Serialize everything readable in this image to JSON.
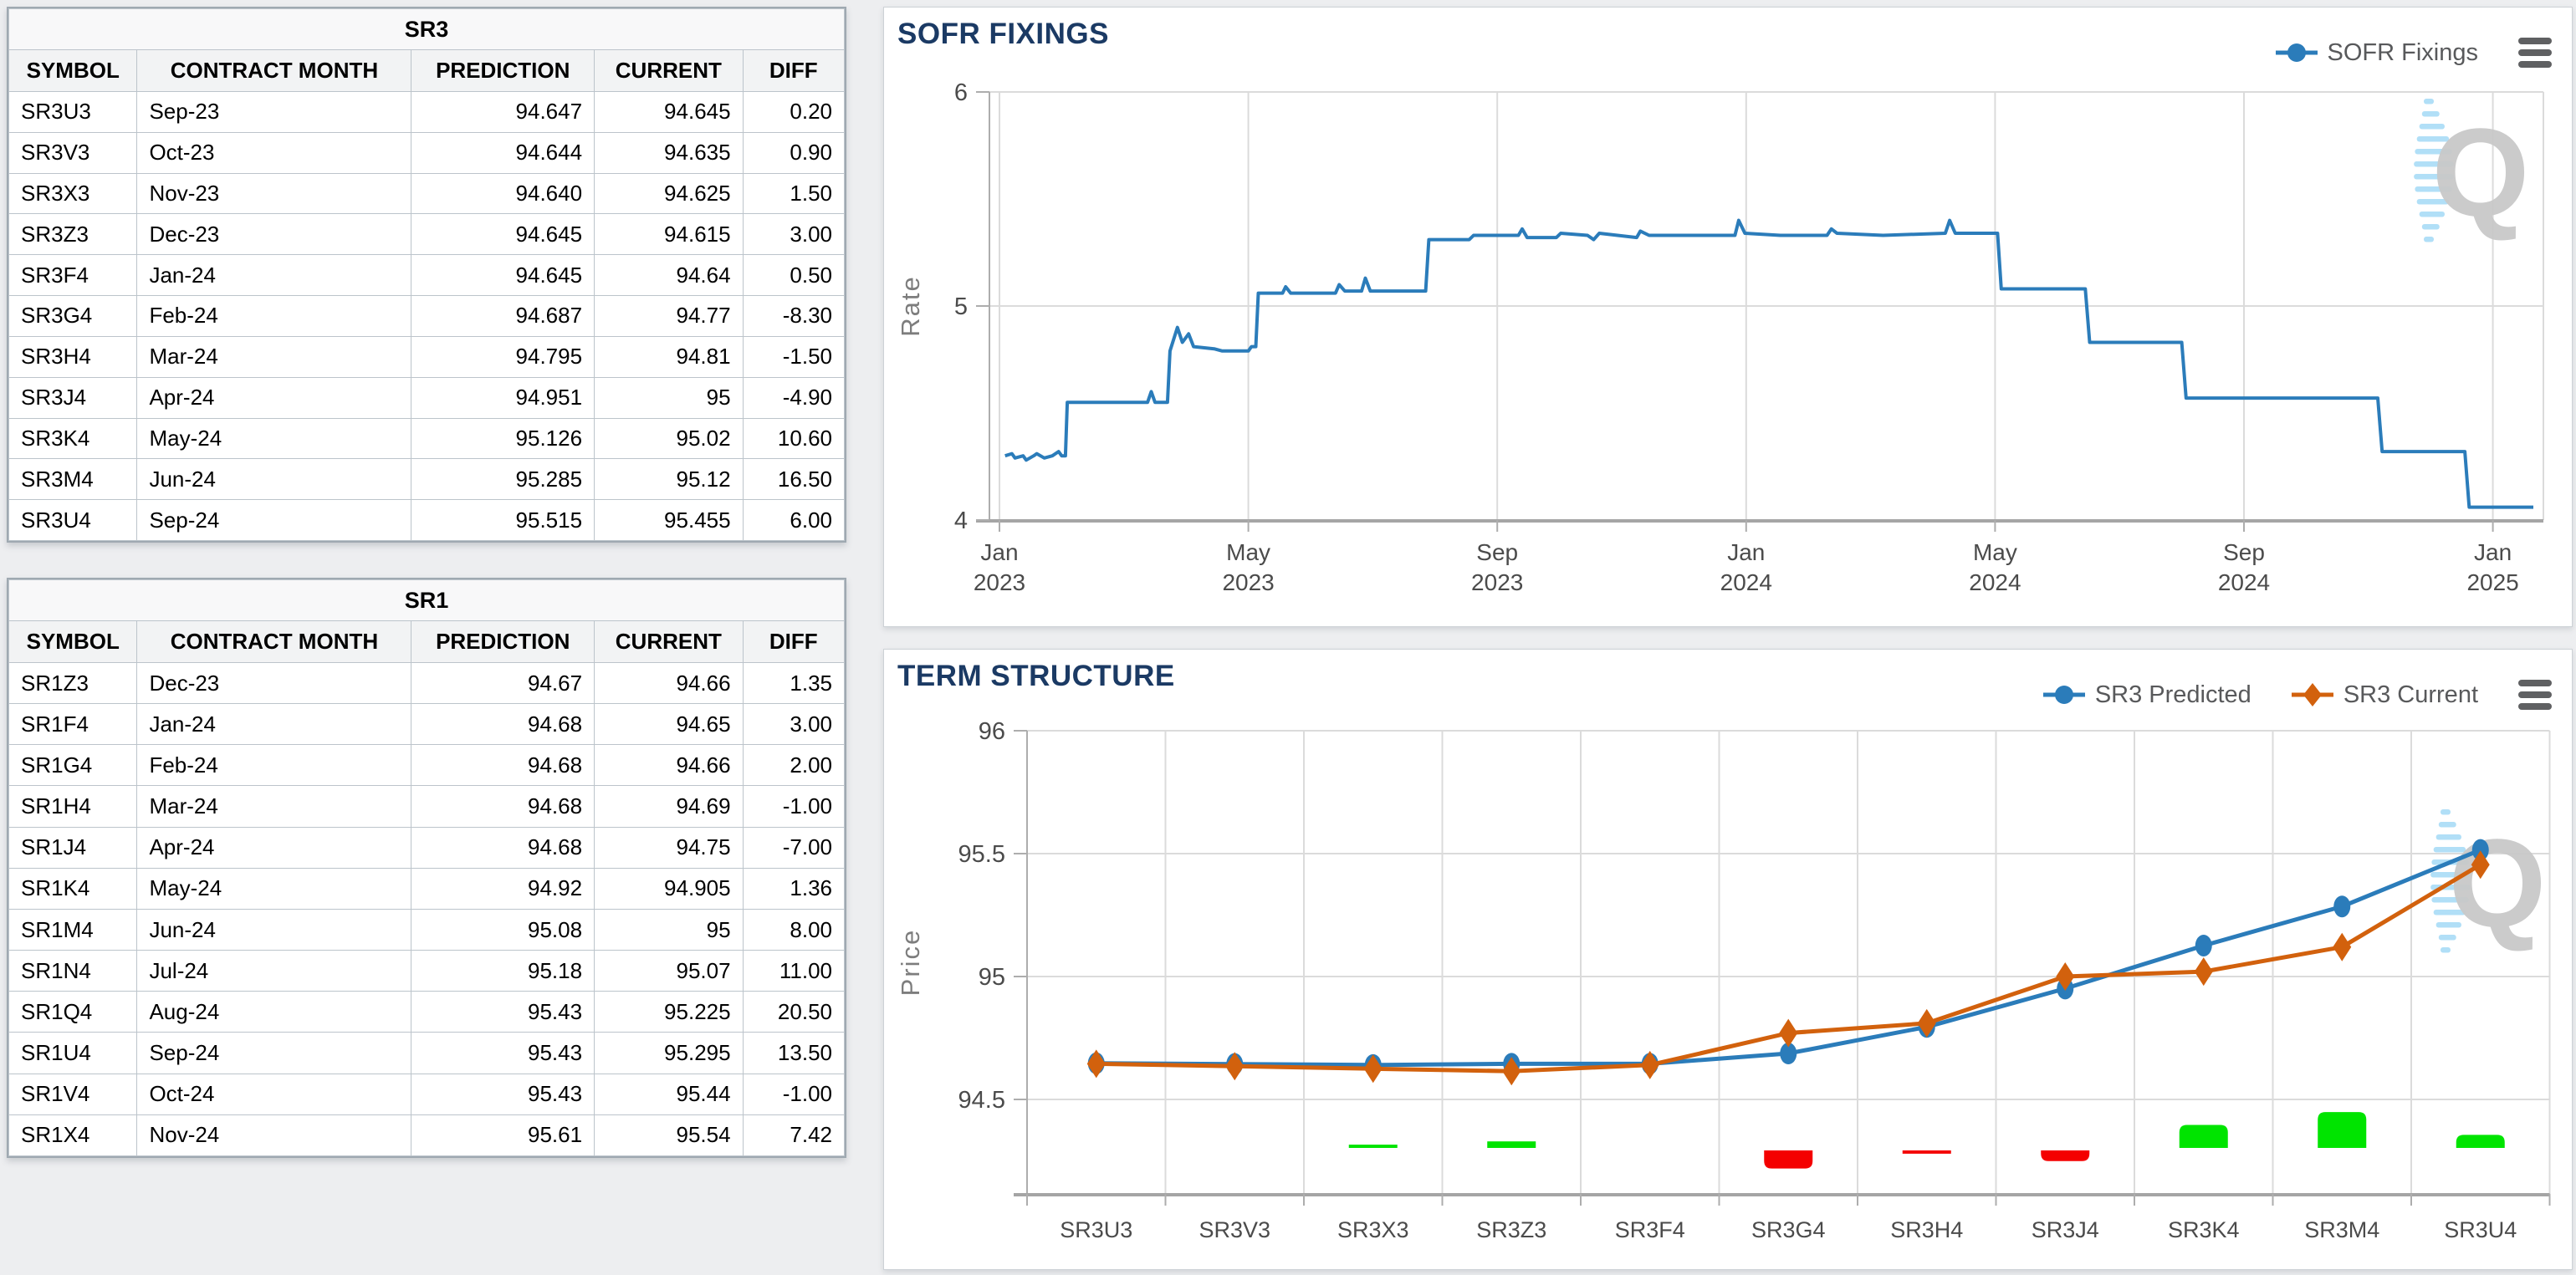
{
  "tables": [
    {
      "title": "SR3",
      "columns": [
        "SYMBOL",
        "CONTRACT MONTH",
        "PREDICTION",
        "CURRENT",
        "DIFF"
      ],
      "rows": [
        [
          "SR3U3",
          "Sep-23",
          "94.647",
          "94.645",
          "0.20"
        ],
        [
          "SR3V3",
          "Oct-23",
          "94.644",
          "94.635",
          "0.90"
        ],
        [
          "SR3X3",
          "Nov-23",
          "94.640",
          "94.625",
          "1.50"
        ],
        [
          "SR3Z3",
          "Dec-23",
          "94.645",
          "94.615",
          "3.00"
        ],
        [
          "SR3F4",
          "Jan-24",
          "94.645",
          "94.64",
          "0.50"
        ],
        [
          "SR3G4",
          "Feb-24",
          "94.687",
          "94.77",
          "-8.30"
        ],
        [
          "SR3H4",
          "Mar-24",
          "94.795",
          "94.81",
          "-1.50"
        ],
        [
          "SR3J4",
          "Apr-24",
          "94.951",
          "95",
          "-4.90"
        ],
        [
          "SR3K4",
          "May-24",
          "95.126",
          "95.02",
          "10.60"
        ],
        [
          "SR3M4",
          "Jun-24",
          "95.285",
          "95.12",
          "16.50"
        ],
        [
          "SR3U4",
          "Sep-24",
          "95.515",
          "95.455",
          "6.00"
        ]
      ]
    },
    {
      "title": "SR1",
      "columns": [
        "SYMBOL",
        "CONTRACT MONTH",
        "PREDICTION",
        "CURRENT",
        "DIFF"
      ],
      "rows": [
        [
          "SR1Z3",
          "Dec-23",
          "94.67",
          "94.66",
          "1.35"
        ],
        [
          "SR1F4",
          "Jan-24",
          "94.68",
          "94.65",
          "3.00"
        ],
        [
          "SR1G4",
          "Feb-24",
          "94.68",
          "94.66",
          "2.00"
        ],
        [
          "SR1H4",
          "Mar-24",
          "94.68",
          "94.69",
          "-1.00"
        ],
        [
          "SR1J4",
          "Apr-24",
          "94.68",
          "94.75",
          "-7.00"
        ],
        [
          "SR1K4",
          "May-24",
          "94.92",
          "94.905",
          "1.36"
        ],
        [
          "SR1M4",
          "Jun-24",
          "95.08",
          "95",
          "8.00"
        ],
        [
          "SR1N4",
          "Jul-24",
          "95.18",
          "95.07",
          "11.00"
        ],
        [
          "SR1Q4",
          "Aug-24",
          "95.43",
          "95.225",
          "20.50"
        ],
        [
          "SR1U4",
          "Sep-24",
          "95.43",
          "95.295",
          "13.50"
        ],
        [
          "SR1V4",
          "Oct-24",
          "95.43",
          "95.44",
          "-1.00"
        ],
        [
          "SR1X4",
          "Nov-24",
          "95.61",
          "95.54",
          "7.42"
        ]
      ]
    }
  ],
  "chart_data": [
    {
      "type": "line",
      "title": "SOFR FIXINGS",
      "ylabel": "Rate",
      "ylim": [
        4,
        6
      ],
      "y_ticks": [
        "6",
        "5",
        "4"
      ],
      "y_tick_values": [
        6,
        5,
        4
      ],
      "grid": true,
      "legend_position": "top-right",
      "x_tick_months": [
        0,
        4,
        8,
        12,
        16,
        20,
        24
      ],
      "x_tick_labels": [
        [
          "Jan",
          "2023"
        ],
        [
          "May",
          "2023"
        ],
        [
          "Sep",
          "2023"
        ],
        [
          "Jan",
          "2024"
        ],
        [
          "May",
          "2024"
        ],
        [
          "Sep",
          "2024"
        ],
        [
          "Jan",
          "2025"
        ]
      ],
      "series": [
        {
          "name": "SOFR Fixings",
          "color": "#2b7cba",
          "marker": "circle",
          "points_month_rate": [
            [
              0.09,
              4.3
            ],
            [
              0.2,
              4.31
            ],
            [
              0.25,
              4.29
            ],
            [
              0.38,
              4.3
            ],
            [
              0.43,
              4.28
            ],
            [
              0.55,
              4.3
            ],
            [
              0.6,
              4.31
            ],
            [
              0.72,
              4.29
            ],
            [
              0.85,
              4.3
            ],
            [
              0.95,
              4.32
            ],
            [
              1.0,
              4.3
            ],
            [
              1.06,
              4.3
            ],
            [
              1.09,
              4.55
            ],
            [
              2.38,
              4.55
            ],
            [
              2.44,
              4.6
            ],
            [
              2.5,
              4.55
            ],
            [
              2.7,
              4.55
            ],
            [
              2.74,
              4.79
            ],
            [
              2.86,
              4.9
            ],
            [
              2.94,
              4.83
            ],
            [
              3.04,
              4.87
            ],
            [
              3.12,
              4.81
            ],
            [
              3.45,
              4.8
            ],
            [
              3.58,
              4.79
            ],
            [
              4.0,
              4.79
            ],
            [
              4.05,
              4.81
            ],
            [
              4.12,
              4.81
            ],
            [
              4.16,
              5.06
            ],
            [
              4.55,
              5.06
            ],
            [
              4.6,
              5.09
            ],
            [
              4.68,
              5.06
            ],
            [
              5.4,
              5.06
            ],
            [
              5.46,
              5.1
            ],
            [
              5.55,
              5.07
            ],
            [
              5.82,
              5.07
            ],
            [
              5.88,
              5.13
            ],
            [
              5.96,
              5.07
            ],
            [
              6.85,
              5.07
            ],
            [
              6.9,
              5.31
            ],
            [
              7.55,
              5.31
            ],
            [
              7.62,
              5.33
            ],
            [
              8.34,
              5.33
            ],
            [
              8.4,
              5.36
            ],
            [
              8.48,
              5.32
            ],
            [
              8.95,
              5.32
            ],
            [
              9.02,
              5.34
            ],
            [
              9.45,
              5.33
            ],
            [
              9.55,
              5.31
            ],
            [
              9.64,
              5.34
            ],
            [
              10.24,
              5.32
            ],
            [
              10.3,
              5.35
            ],
            [
              10.44,
              5.33
            ],
            [
              11.0,
              5.33
            ],
            [
              11.82,
              5.33
            ],
            [
              11.88,
              5.4
            ],
            [
              11.98,
              5.34
            ],
            [
              12.55,
              5.33
            ],
            [
              13.3,
              5.33
            ],
            [
              13.37,
              5.36
            ],
            [
              13.46,
              5.34
            ],
            [
              14.2,
              5.33
            ],
            [
              15.2,
              5.34
            ],
            [
              15.27,
              5.4
            ],
            [
              15.36,
              5.34
            ],
            [
              16.04,
              5.34
            ],
            [
              16.1,
              5.08
            ],
            [
              17.45,
              5.08
            ],
            [
              17.52,
              4.83
            ],
            [
              19.0,
              4.83
            ],
            [
              19.07,
              4.57
            ],
            [
              22.15,
              4.57
            ],
            [
              22.22,
              4.32
            ],
            [
              23.55,
              4.32
            ],
            [
              23.62,
              4.06
            ],
            [
              24.65,
              4.06
            ]
          ]
        }
      ]
    },
    {
      "type": "line+bar",
      "title": "TERM STRUCTURE",
      "ylabel": "Price",
      "ylim": [
        94.12,
        96
      ],
      "y_ticks": [
        "96",
        "95.5",
        "95",
        "94.5"
      ],
      "y_tick_values": [
        96,
        95.5,
        95,
        94.5
      ],
      "grid": true,
      "legend_position": "top-right",
      "categories": [
        "SR3U3",
        "SR3V3",
        "SR3X3",
        "SR3Z3",
        "SR3F4",
        "SR3G4",
        "SR3H4",
        "SR3J4",
        "SR3K4",
        "SR3M4",
        "SR3U4"
      ],
      "series": [
        {
          "name": "SR3 Predicted",
          "color": "#2b7cba",
          "marker": "circle",
          "values": [
            94.647,
            94.644,
            94.64,
            94.645,
            94.645,
            94.687,
            94.795,
            94.951,
            95.126,
            95.285,
            95.515
          ]
        },
        {
          "name": "SR3 Current",
          "color": "#d2610d",
          "marker": "diamond",
          "values": [
            94.645,
            94.635,
            94.625,
            94.615,
            94.64,
            94.77,
            94.81,
            95,
            95.02,
            95.12,
            95.455
          ]
        }
      ],
      "bar_series": {
        "name": "Diff",
        "values": [
          0.2,
          0.9,
          1.5,
          3.0,
          0.5,
          -8.3,
          -1.5,
          -4.9,
          10.6,
          16.5,
          6.0
        ],
        "positive_color": "#00e400",
        "negative_color": "#f40000"
      }
    }
  ],
  "watermark": {
    "letter": "Q",
    "letter_color": "#c9c9c9",
    "dash_color": "#a8dcf6"
  },
  "icons": {
    "menu": "hamburger-menu"
  }
}
